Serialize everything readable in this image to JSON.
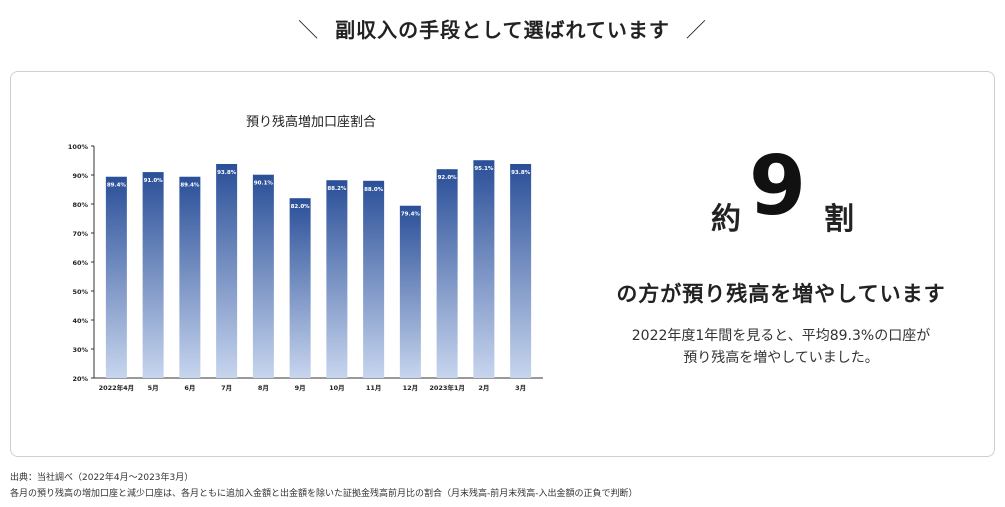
{
  "headline": {
    "left_mark": "＼",
    "text": "副収入の手段として選ばれています",
    "right_mark": "／"
  },
  "chart_data": {
    "type": "bar",
    "title": "預り残高増加口座割合",
    "categories": [
      "2022年4月",
      "5月",
      "6月",
      "7月",
      "8月",
      "9月",
      "10月",
      "11月",
      "12月",
      "2023年1月",
      "2月",
      "3月"
    ],
    "values": [
      89.4,
      91.0,
      89.4,
      93.8,
      90.1,
      82.0,
      88.2,
      88.0,
      79.4,
      92.0,
      95.1,
      93.8
    ],
    "value_labels": [
      "89.4%",
      "91.0%",
      "89.4%",
      "93.8%",
      "90.1%",
      "82.0%",
      "88.2%",
      "88.0%",
      "79.4%",
      "92.0%",
      "95.1%",
      "93.8%"
    ],
    "yticks": [
      20,
      30,
      40,
      50,
      60,
      70,
      80,
      90,
      100
    ],
    "ytick_labels": [
      "20%",
      "30%",
      "40%",
      "50%",
      "60%",
      "70%",
      "80%",
      "90%",
      "100%"
    ],
    "ylim": [
      20,
      100
    ],
    "xlabel": "",
    "ylabel": "",
    "grid": false,
    "colors": {
      "bar_top": "#2a4f98",
      "bar_bottom": "#c7d5ee",
      "label": "#ffffff",
      "axis": "#333333"
    }
  },
  "stat": {
    "prefix": "約",
    "number": "9",
    "suffix": "割",
    "subtitle": "の方が預り残高を増やしています",
    "desc_line1": "2022年度1年間を見ると、平均89.3%の口座が",
    "desc_line2": "預り残高を増やしていました。"
  },
  "footnotes": {
    "source": "出典：当社調べ（2022年4月〜2023年3月）",
    "note": "各月の預り残高の増加口座と減少口座は、各月ともに追加入金額と出金額を除いた証拠金残高前月比の割合（月末残高-前月末残高-入出金額の正負で判断）"
  }
}
